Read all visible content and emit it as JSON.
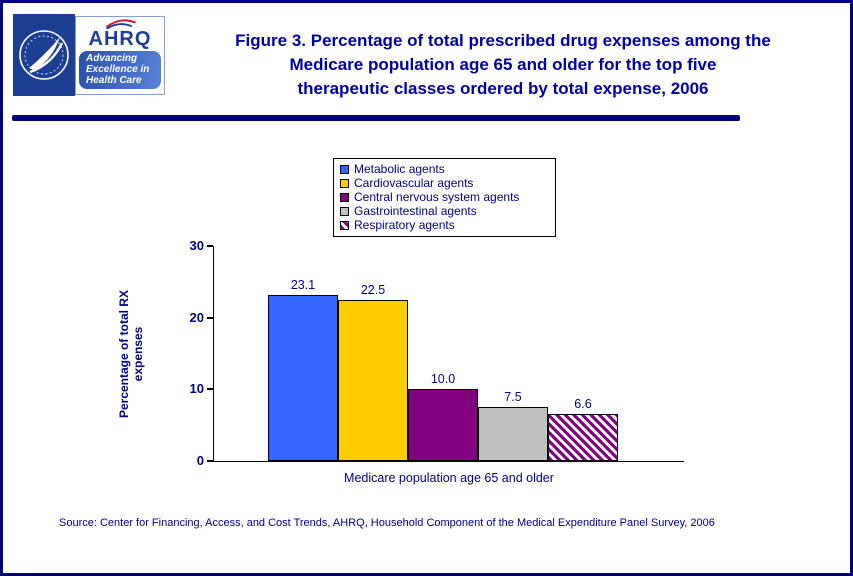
{
  "page": {
    "border_color": "#000080",
    "title_color": "#0000A0",
    "title_lines": [
      "Figure 3. Percentage of total prescribed drug expenses among the",
      "Medicare population age 65 and older for the top five",
      "therapeutic classes ordered by total expense, 2006"
    ],
    "source": "Source: Center for Financing, Access, and Cost Trends, AHRQ, Household Component of the Medical Expenditure Panel Survey, 2006"
  },
  "logos": {
    "hhs_icon": "hhs-seal",
    "ahrq_name": "AHRQ",
    "ahrq_tagline_lines": [
      "Advancing",
      "Excellence in",
      "Health Care"
    ]
  },
  "chart_data": {
    "type": "bar",
    "title": "Figure 3. Percentage of total prescribed drug expenses among the Medicare population age 65 and older for the top five therapeutic classes ordered by total expense, 2006",
    "xlabel": "Medicare population age 65 and older",
    "ylabel": "Percentage of total RX expenses",
    "ylim": [
      0,
      30
    ],
    "yticks": [
      0,
      10,
      20,
      30
    ],
    "grid": false,
    "legend_position": "top-center",
    "categories": [
      "Metabolic agents",
      "Cardiovascular agents",
      "Central nervous system agents",
      "Gastrointestinal agents",
      "Respiratory agents"
    ],
    "values": [
      23.1,
      22.5,
      10.0,
      7.5,
      6.6
    ],
    "value_labels": [
      "23.1",
      "22.5",
      "10.0",
      "7.5",
      "6.6"
    ],
    "bar_colors": [
      "#3366FF",
      "#FFCC00",
      "#800080",
      "#C0C0C0",
      "hatch"
    ],
    "hatch_color": "#800080",
    "text_color": "#000080"
  }
}
